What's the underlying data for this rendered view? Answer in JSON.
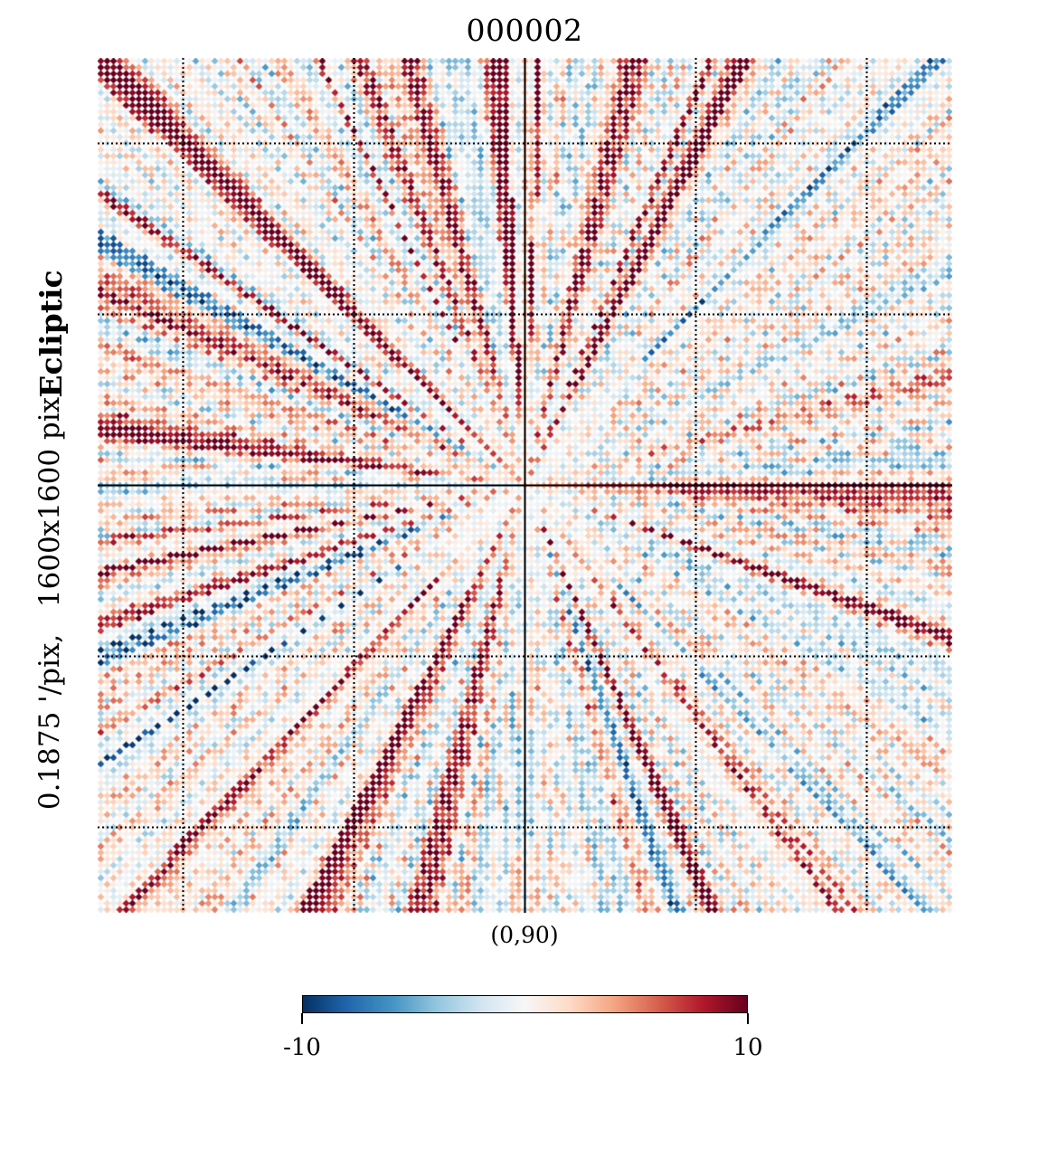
{
  "chart_data": {
    "type": "heatmap",
    "title": "000002",
    "projection": "gnomonic",
    "center_label": "(0,90)",
    "frame": "Ecliptic",
    "resolution_text": "0.1875 '/pix,   1600x1600 pix",
    "colormap": "RdBu_r",
    "colorbar": {
      "min": -10,
      "max": 10,
      "tick_labels": [
        "-10",
        "10"
      ],
      "colors": [
        "#053061",
        "#2166ac",
        "#4393c3",
        "#92c5de",
        "#d1e5f0",
        "#f7f7f7",
        "#fddbc7",
        "#f4a582",
        "#d6604d",
        "#b2182b",
        "#67001f"
      ]
    },
    "graticule": {
      "style": "dotted",
      "spacing_fraction": 0.2
    },
    "pattern": "radial streaks of values between -10 and 10 converging on the map center"
  }
}
